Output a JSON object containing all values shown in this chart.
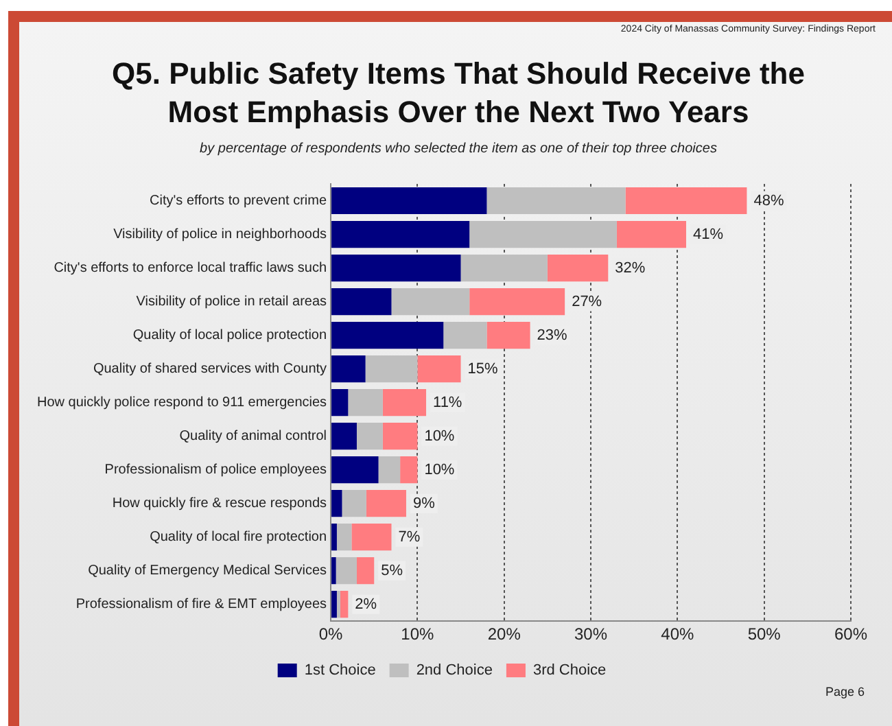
{
  "chart_data": {
    "type": "bar",
    "orientation": "horizontal",
    "stacked": true,
    "title": "Q5. Public Safety Items That Should Receive the Most  Emphasis Over the Next Two Years",
    "subtitle": "by percentage of respondents who selected the item as one of their top three choices",
    "annotations": [
      "2024 City of Manassas Community Survey: Findings Report",
      "Page 6"
    ],
    "categories": [
      "City's efforts to prevent crime",
      "Visibility of police in neighborhoods",
      "City's efforts to enforce local traffic laws such",
      "Visibility of police in retail areas",
      "Quality of local police protection",
      "Quality of shared services with County",
      "How quickly police respond to 911 emergencies",
      "Quality of animal control",
      "Professionalism of police employees",
      "How quickly fire & rescue responds",
      "Quality of local fire protection",
      "Quality of Emergency Medical Services",
      "Professionalism of fire & EMT employees"
    ],
    "series": [
      {
        "name": "1st Choice",
        "color": "#000080",
        "values": [
          18,
          16,
          15,
          7,
          13,
          4,
          2,
          3,
          5.5,
          1.3,
          0.7,
          0.6,
          0.7
        ]
      },
      {
        "name": "2nd Choice",
        "color": "#bfbfbf",
        "values": [
          16,
          17,
          10,
          9,
          5,
          6,
          4,
          3,
          2.5,
          2.8,
          1.7,
          2.4,
          0.4
        ]
      },
      {
        "name": "3rd Choice",
        "color": "#ff7c80",
        "values": [
          14,
          8,
          7,
          11,
          5,
          5,
          5,
          4,
          2,
          4.6,
          4.6,
          2,
          0.9
        ]
      }
    ],
    "totals": [
      "48%",
      "41%",
      "32%",
      "27%",
      "23%",
      "15%",
      "11%",
      "10%",
      "10%",
      "9%",
      "7%",
      "5%",
      "2%"
    ],
    "xlim": [
      0,
      60
    ],
    "xticks": [
      {
        "value": 0,
        "label": "0%"
      },
      {
        "value": 10,
        "label": "10%"
      },
      {
        "value": 20,
        "label": "20%"
      },
      {
        "value": 30,
        "label": "30%"
      },
      {
        "value": 40,
        "label": "40%"
      },
      {
        "value": 50,
        "label": "50%"
      },
      {
        "value": 60,
        "label": "60%"
      }
    ],
    "grid": "x",
    "legend": "bottom"
  }
}
